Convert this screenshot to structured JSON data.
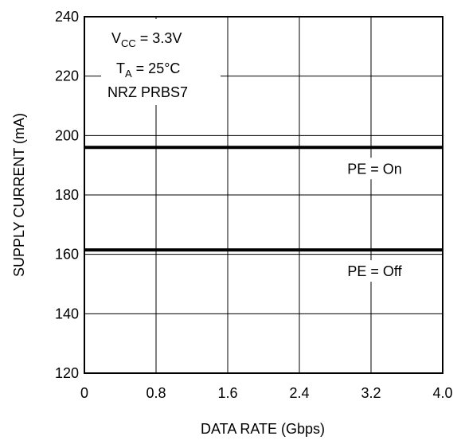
{
  "chart_data": {
    "type": "line",
    "title": "",
    "xlabel": "DATA RATE (Gbps)",
    "ylabel": "SUPPLY CURRENT (mA)",
    "xlim": [
      0,
      4.0
    ],
    "ylim": [
      120,
      240
    ],
    "x_ticks": [
      "0",
      "0.8",
      "1.6",
      "2.4",
      "3.2",
      "4.0"
    ],
    "y_ticks": [
      "120",
      "140",
      "160",
      "180",
      "200",
      "220",
      "240"
    ],
    "grid": true,
    "conditions": {
      "vcc_main": "V",
      "vcc_sub": "CC",
      "vcc_value": " = 3.3V",
      "ta_main": "T",
      "ta_sub": "A",
      "ta_value": " = 25°C",
      "pattern": "NRZ PRBS7"
    },
    "series": [
      {
        "name": "PE = On",
        "x": [
          0,
          4.0
        ],
        "y": [
          196,
          196
        ]
      },
      {
        "name": "PE = Off",
        "x": [
          0,
          4.0
        ],
        "y": [
          161.5,
          161.5
        ]
      }
    ]
  }
}
